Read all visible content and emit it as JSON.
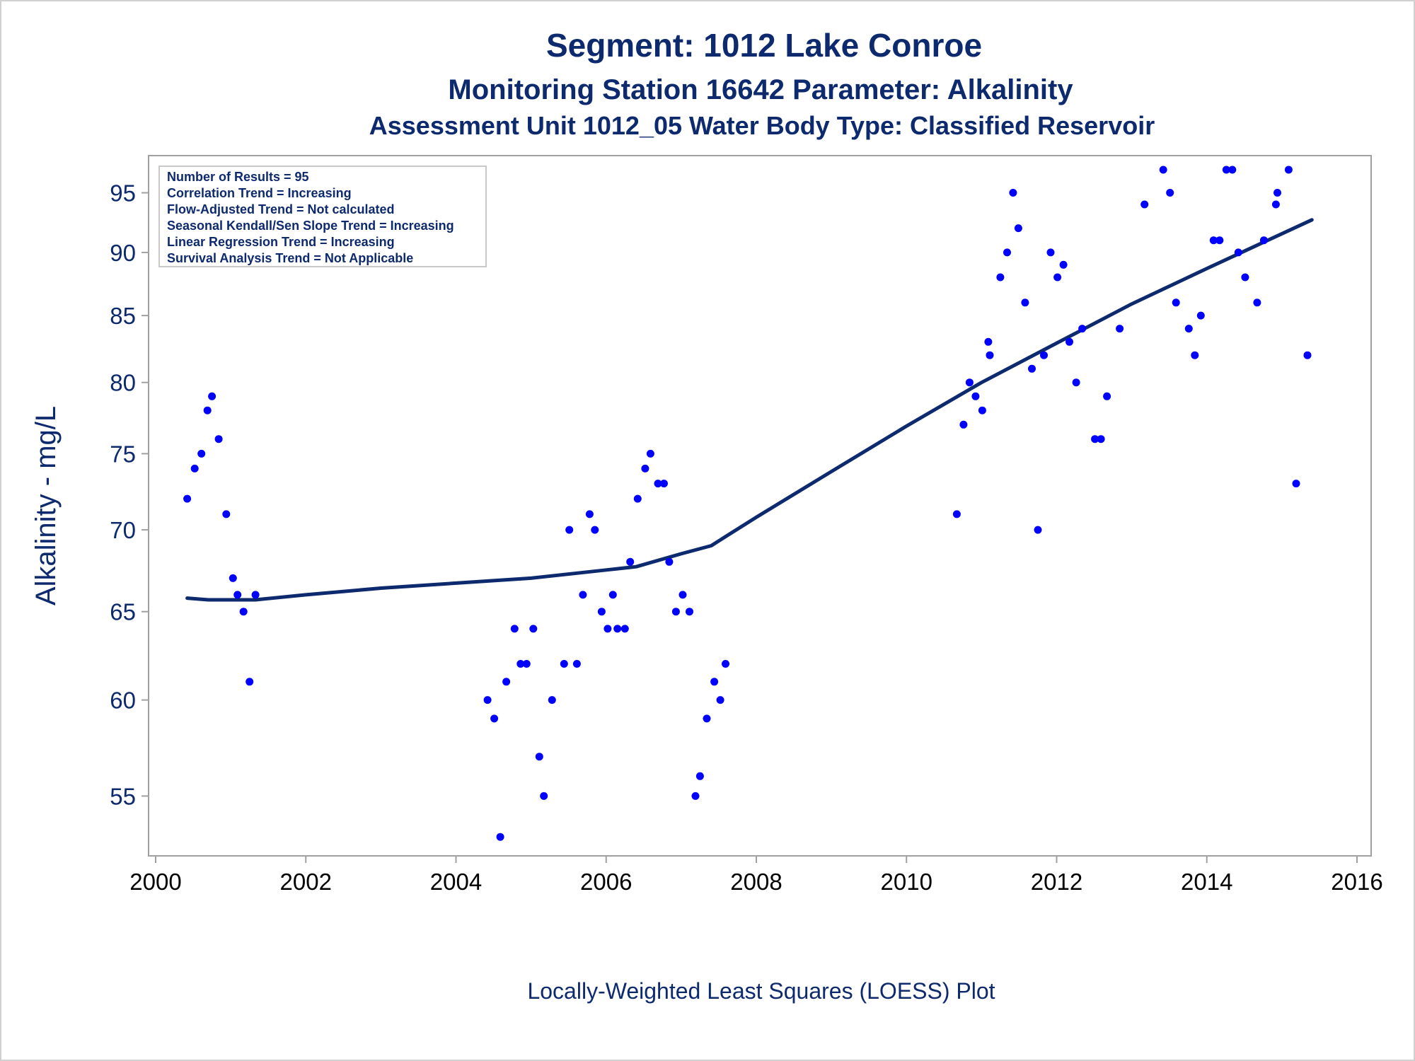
{
  "chart_data": {
    "type": "scatter",
    "title": "Segment: 1012  Lake Conroe",
    "subtitle": "Monitoring Station 16642 Parameter: Alkalinity",
    "subtitle2": "Assessment Unit 1012_05   Water Body Type: Classified Reservoir",
    "xlabel": "Locally-Weighted Least Squares (LOESS) Plot",
    "ylabel": "Alkalinity - mg/L",
    "y_scale": "log",
    "xlim": [
      2000,
      2016
    ],
    "ylim": [
      52.5,
      97.5
    ],
    "x_ticks": [
      "2000",
      "2002",
      "2004",
      "2006",
      "2008",
      "2010",
      "2012",
      "2014",
      "2016"
    ],
    "y_ticks": [
      "55",
      "60",
      "65",
      "70",
      "75",
      "80",
      "85",
      "90",
      "95"
    ],
    "grid": false,
    "legend_placement": "top-left",
    "annotations": [
      "Number of Results = 95",
      "Correlation Trend = Increasing",
      "Flow-Adjusted Trend = Not calculated",
      "Seasonal Kendall/Sen Slope Trend = Increasing",
      "Linear Regression Trend = Increasing",
      "Survival Analysis Trend = Not Applicable"
    ],
    "colors": {
      "points": "#0000ff",
      "loess": "#0e2a6e",
      "text": "#0e2a6e"
    },
    "series": [
      {
        "kind": "scatter",
        "points": [
          [
            2000.42,
            72
          ],
          [
            2000.52,
            74
          ],
          [
            2000.61,
            75
          ],
          [
            2000.69,
            78
          ],
          [
            2000.75,
            79
          ],
          [
            2000.84,
            76
          ],
          [
            2000.94,
            71
          ],
          [
            2001.03,
            67
          ],
          [
            2001.09,
            66
          ],
          [
            2001.17,
            65
          ],
          [
            2001.25,
            61
          ],
          [
            2001.33,
            66
          ],
          [
            2004.42,
            60
          ],
          [
            2004.51,
            59
          ],
          [
            2004.59,
            53
          ],
          [
            2004.67,
            61
          ],
          [
            2004.78,
            64
          ],
          [
            2004.86,
            62
          ],
          [
            2004.94,
            62
          ],
          [
            2005.03,
            64
          ],
          [
            2005.11,
            57
          ],
          [
            2005.17,
            55
          ],
          [
            2005.28,
            60
          ],
          [
            2005.44,
            62
          ],
          [
            2005.51,
            70
          ],
          [
            2005.61,
            62
          ],
          [
            2005.69,
            66
          ],
          [
            2005.78,
            71
          ],
          [
            2005.85,
            70
          ],
          [
            2005.94,
            65
          ],
          [
            2006.02,
            64
          ],
          [
            2006.09,
            66
          ],
          [
            2006.15,
            64
          ],
          [
            2006.25,
            64
          ],
          [
            2006.32,
            68
          ],
          [
            2006.42,
            72
          ],
          [
            2006.52,
            74
          ],
          [
            2006.59,
            75
          ],
          [
            2006.69,
            73
          ],
          [
            2006.77,
            73
          ],
          [
            2006.84,
            68
          ],
          [
            2006.93,
            65
          ],
          [
            2007.02,
            66
          ],
          [
            2007.11,
            65
          ],
          [
            2007.19,
            55
          ],
          [
            2007.25,
            56
          ],
          [
            2007.34,
            59
          ],
          [
            2007.44,
            61
          ],
          [
            2007.52,
            60
          ],
          [
            2007.59,
            62
          ],
          [
            2010.67,
            71
          ],
          [
            2010.76,
            77
          ],
          [
            2010.84,
            80
          ],
          [
            2010.92,
            79
          ],
          [
            2011.01,
            78
          ],
          [
            2011.09,
            83
          ],
          [
            2011.11,
            82
          ],
          [
            2011.25,
            88
          ],
          [
            2011.34,
            90
          ],
          [
            2011.42,
            95
          ],
          [
            2011.49,
            92
          ],
          [
            2011.58,
            86
          ],
          [
            2011.67,
            81
          ],
          [
            2011.75,
            70
          ],
          [
            2011.83,
            82
          ],
          [
            2011.92,
            90
          ],
          [
            2012.01,
            88
          ],
          [
            2012.09,
            89
          ],
          [
            2012.17,
            83
          ],
          [
            2012.26,
            80
          ],
          [
            2012.34,
            84
          ],
          [
            2012.51,
            76
          ],
          [
            2012.59,
            76
          ],
          [
            2012.67,
            79
          ],
          [
            2012.84,
            84
          ],
          [
            2013.17,
            94
          ],
          [
            2013.42,
            97
          ],
          [
            2013.51,
            95
          ],
          [
            2013.59,
            86
          ],
          [
            2013.76,
            84
          ],
          [
            2013.84,
            82
          ],
          [
            2013.92,
            85
          ],
          [
            2014.09,
            91
          ],
          [
            2014.17,
            91
          ],
          [
            2014.26,
            97
          ],
          [
            2014.34,
            97
          ],
          [
            2014.42,
            90
          ],
          [
            2014.51,
            88
          ],
          [
            2014.67,
            86
          ],
          [
            2014.76,
            91
          ],
          [
            2014.92,
            94
          ],
          [
            2014.94,
            95
          ],
          [
            2015.09,
            97
          ],
          [
            2015.19,
            73
          ],
          [
            2015.34,
            82
          ]
        ]
      },
      {
        "kind": "line",
        "points": [
          [
            2000.42,
            65.8
          ],
          [
            2000.7,
            65.7
          ],
          [
            2001.33,
            65.7
          ],
          [
            2002.0,
            66.0
          ],
          [
            2003.0,
            66.4
          ],
          [
            2004.0,
            66.7
          ],
          [
            2005.0,
            67.0
          ],
          [
            2006.0,
            67.5
          ],
          [
            2006.4,
            67.7
          ],
          [
            2007.0,
            68.5
          ],
          [
            2007.4,
            69.0
          ],
          [
            2007.6,
            69.6
          ],
          [
            2008.0,
            70.8
          ],
          [
            2009.0,
            73.8
          ],
          [
            2010.0,
            76.9
          ],
          [
            2011.0,
            80.0
          ],
          [
            2012.0,
            82.9
          ],
          [
            2013.0,
            85.9
          ],
          [
            2014.0,
            88.7
          ],
          [
            2015.4,
            92.7
          ]
        ]
      }
    ]
  }
}
